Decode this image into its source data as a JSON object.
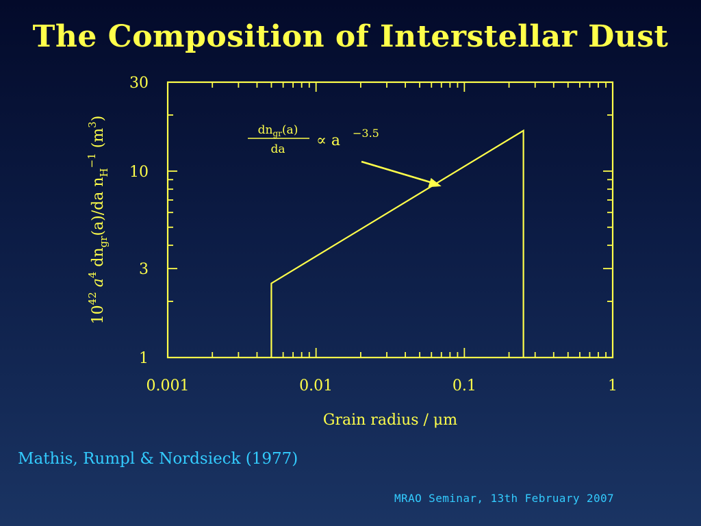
{
  "slide": {
    "title": "The Composition of Interstellar Dust",
    "citation": "Mathis, Rumpl & Nordsieck (1977)",
    "footer": "MRAO Seminar, 13th February 2007"
  },
  "colors": {
    "accent": "#ffff4a",
    "citation": "#33ccff"
  },
  "chart_data": {
    "type": "line",
    "title": "",
    "xlabel": "Grain radius / μm",
    "ylabel": "10^42 a^4 dn_gr(a)/da n_H^-1 (m^3)",
    "xscale": "log",
    "yscale": "log",
    "xlim": [
      0.001,
      1
    ],
    "ylim": [
      1,
      30
    ],
    "x_ticks": [
      0.001,
      0.01,
      0.1,
      1
    ],
    "x_tick_labels": [
      "0.001",
      "0.01",
      "0.1",
      "1"
    ],
    "y_ticks": [
      1,
      3,
      10,
      30
    ],
    "y_tick_labels": [
      "1",
      "3",
      "10",
      "30"
    ],
    "grid": false,
    "series": [
      {
        "x": [
          0.005,
          0.005,
          0.25,
          0.25
        ],
        "y": [
          1,
          2.5,
          16.5,
          1
        ]
      }
    ],
    "annotation": {
      "fraction_numerator": "dn",
      "fraction_numerator_sub": "gr",
      "fraction_numerator_tail": "(a)",
      "fraction_denominator": "da",
      "relation": "∝ a",
      "exponent": "−3.5",
      "arrow_target": {
        "x": 0.07,
        "y": 8.3
      }
    }
  }
}
